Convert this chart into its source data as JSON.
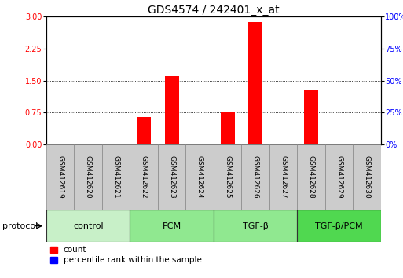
{
  "title": "GDS4574 / 242401_x_at",
  "samples": [
    "GSM412619",
    "GSM412620",
    "GSM412621",
    "GSM412622",
    "GSM412623",
    "GSM412624",
    "GSM412625",
    "GSM412626",
    "GSM412627",
    "GSM412628",
    "GSM412629",
    "GSM412630"
  ],
  "count_values": [
    0,
    0,
    0,
    0.65,
    1.6,
    0,
    0.78,
    2.87,
    0,
    1.27,
    0,
    0
  ],
  "percentile_values": [
    0,
    0,
    0,
    0.04,
    0.04,
    0,
    0.04,
    0.13,
    0,
    0.04,
    0,
    0
  ],
  "groups": [
    {
      "label": "control",
      "start": 0,
      "end": 3,
      "color": "#c8f0c8"
    },
    {
      "label": "PCM",
      "start": 3,
      "end": 6,
      "color": "#90e890"
    },
    {
      "label": "TGF-β",
      "start": 6,
      "end": 9,
      "color": "#90e890"
    },
    {
      "label": "TGF-β/PCM",
      "start": 9,
      "end": 12,
      "color": "#50d850"
    }
  ],
  "ylim_left": [
    0,
    3
  ],
  "ylim_right": [
    0,
    100
  ],
  "yticks_left": [
    0,
    0.75,
    1.5,
    2.25,
    3
  ],
  "yticks_right": [
    0,
    25,
    50,
    75,
    100
  ],
  "bar_color_red": "#ff0000",
  "bar_color_blue": "#0000ff",
  "sample_box_color": "#cccccc",
  "sample_box_edge": "#888888",
  "group_edge_color": "#333333",
  "title_fontsize": 10,
  "tick_fontsize": 7,
  "sample_fontsize": 6.5,
  "label_fontsize": 8,
  "protocol_label": "protocol",
  "legend_count": "count",
  "legend_pct": "percentile rank within the sample"
}
